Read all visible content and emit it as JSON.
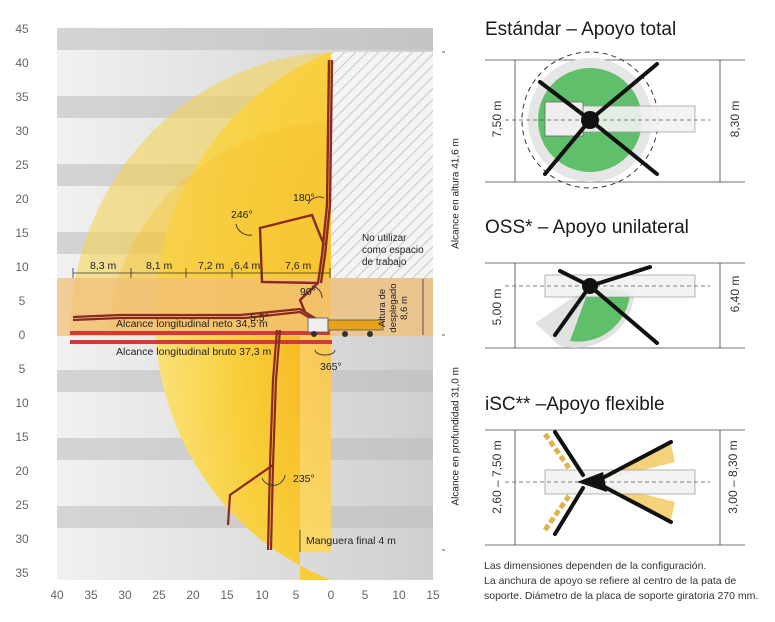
{
  "diagram": {
    "y_axis_labels": [
      "45",
      "40",
      "35",
      "30",
      "25",
      "20",
      "15",
      "10",
      "5",
      "0",
      "5",
      "10",
      "15",
      "20",
      "25",
      "30",
      "35"
    ],
    "x_axis_labels": [
      "40",
      "35",
      "30",
      "25",
      "20",
      "15",
      "10",
      "5",
      "0",
      "5",
      "10",
      "15"
    ],
    "segment_lengths": [
      "8,3 m",
      "8,1 m",
      "7,2 m",
      "6,4 m",
      "7,6 m"
    ],
    "angles": {
      "a180": "180°",
      "a246": "246°",
      "a90": "90°",
      "a55": "5,5°",
      "a365": "365°",
      "a235": "235°"
    },
    "no_use_text": [
      "No utilizar",
      "como espacio",
      "de trabajo"
    ],
    "deploy_height": [
      "Altura de",
      "desplegado",
      "8,6 m"
    ],
    "net_reach": "Alcance longitudinal neto 34,5 m",
    "gross_reach": "Alcance longitudinal bruto 37,3 m",
    "height_reach": "Alcance en altura 41,6 m",
    "depth_reach": "Alcance en profundidad 31,0 m",
    "end_hose": "Manguera final 4 m",
    "colors": {
      "reach_zone": "#f7cf3a",
      "core_zone": "#f5b018",
      "boom": "#8b2a22",
      "reach_line": "#d03a3a",
      "deploy_band": "#f2c07a"
    }
  },
  "panels": {
    "standard": {
      "title": "Estándar – Apoyo total",
      "dim_left": "7,50 m",
      "dim_right": "8,30 m"
    },
    "oss": {
      "title": "OSS* – Apoyo unilateral",
      "dim_left": "5,00 m",
      "dim_right": "6,40 m"
    },
    "isc": {
      "title": "iSC** –Apoyo flexible",
      "dim_left": "2,60 – 7,50 m",
      "dim_right": "3,00 – 8,30 m"
    }
  },
  "notes": [
    "Las dimensiones dependen de la configuración.",
    "La anchura de apoyo se refiere al centro de la pata de",
    "soporte. Diámetro de la placa de soporte giratoria 270 mm."
  ]
}
